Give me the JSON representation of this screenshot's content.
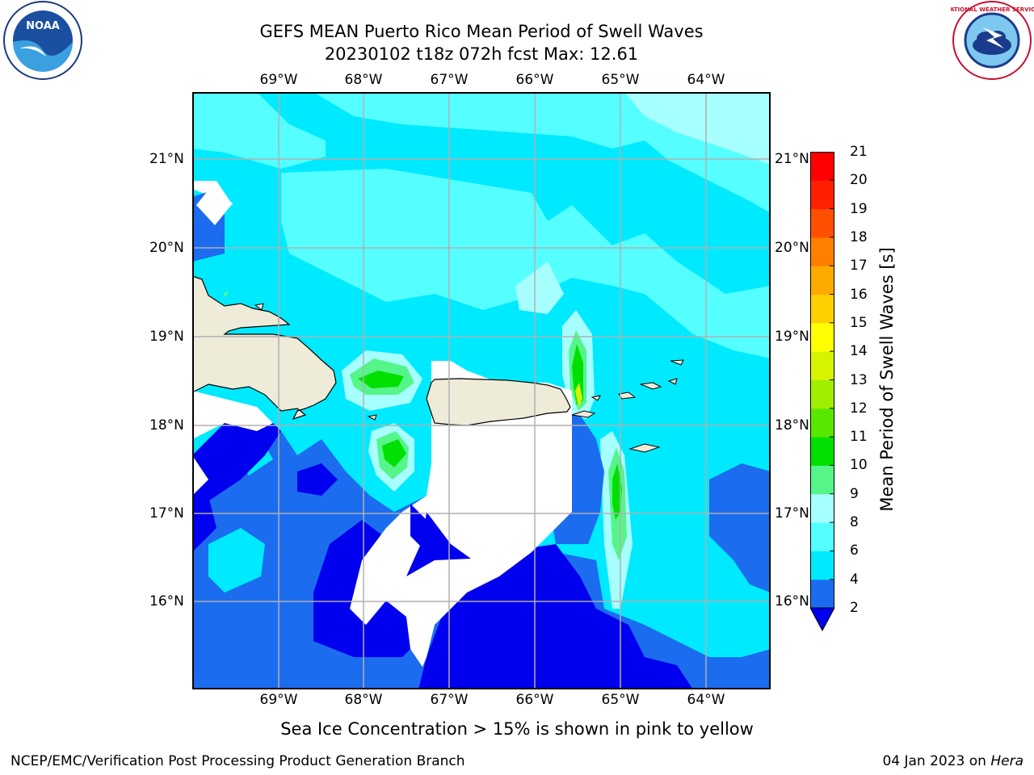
{
  "title": {
    "line1": "GEFS MEAN Puerto Rico Mean Period of Swell Waves",
    "line2": "20230102 t18z 072h fcst   Max: 12.61"
  },
  "axes": {
    "lon_labels": [
      "69°W",
      "68°W",
      "67°W",
      "66°W",
      "65°W",
      "64°W"
    ],
    "lat_labels": [
      "21°N",
      "20°N",
      "19°N",
      "18°N",
      "17°N",
      "16°N"
    ]
  },
  "colorbar": {
    "label": "Mean Period of Swell Waves [s]",
    "ticks": [
      "2",
      "4",
      "6",
      "8",
      "9",
      "10",
      "11",
      "12",
      "13",
      "14",
      "15",
      "16",
      "17",
      "18",
      "19",
      "20",
      "21"
    ],
    "colors": [
      "#0000ee",
      "#1c6cf0",
      "#00eaff",
      "#55ffff",
      "#a8ffff",
      "#55f58a",
      "#00e000",
      "#58e800",
      "#a0ef00",
      "#d6f400",
      "#ffff00",
      "#ffd000",
      "#ffaa00",
      "#ff7f00",
      "#ff5000",
      "#ff2000",
      "#ff0000"
    ]
  },
  "chart_data": {
    "type": "heatmap",
    "lon_range": [
      -69.99,
      -63.25
    ],
    "lat_range": [
      15.0,
      21.75
    ],
    "value_range": [
      2,
      21
    ],
    "max_value": 12.61,
    "units": "s",
    "regions": [
      {
        "level": "6-8",
        "area": "northern open waters"
      },
      {
        "level": "8-9",
        "area": "north-east corner"
      },
      {
        "level": "10-12",
        "area": "Mona Passage / west of Puerto Rico"
      },
      {
        "level": "10-12",
        "area": "east of Puerto Rico (peak near 65.5°W, 18.5°N)"
      },
      {
        "level": "2-4",
        "area": "southern Caribbean waters"
      },
      {
        "level": "<2",
        "area": "south of Puerto Rico and near 16°N"
      }
    ]
  },
  "footer": {
    "note": "Sea Ice Concentration > 15% is shown in pink to yellow",
    "left": "NCEP/EMC/Verification Post Processing Product Generation Branch",
    "right_date": "04 Jan 2023 on ",
    "right_host": "Hera"
  },
  "logos": {
    "noaa_text": "NOAA",
    "nws_text": "NATIONAL WEATHER SERVICE"
  }
}
